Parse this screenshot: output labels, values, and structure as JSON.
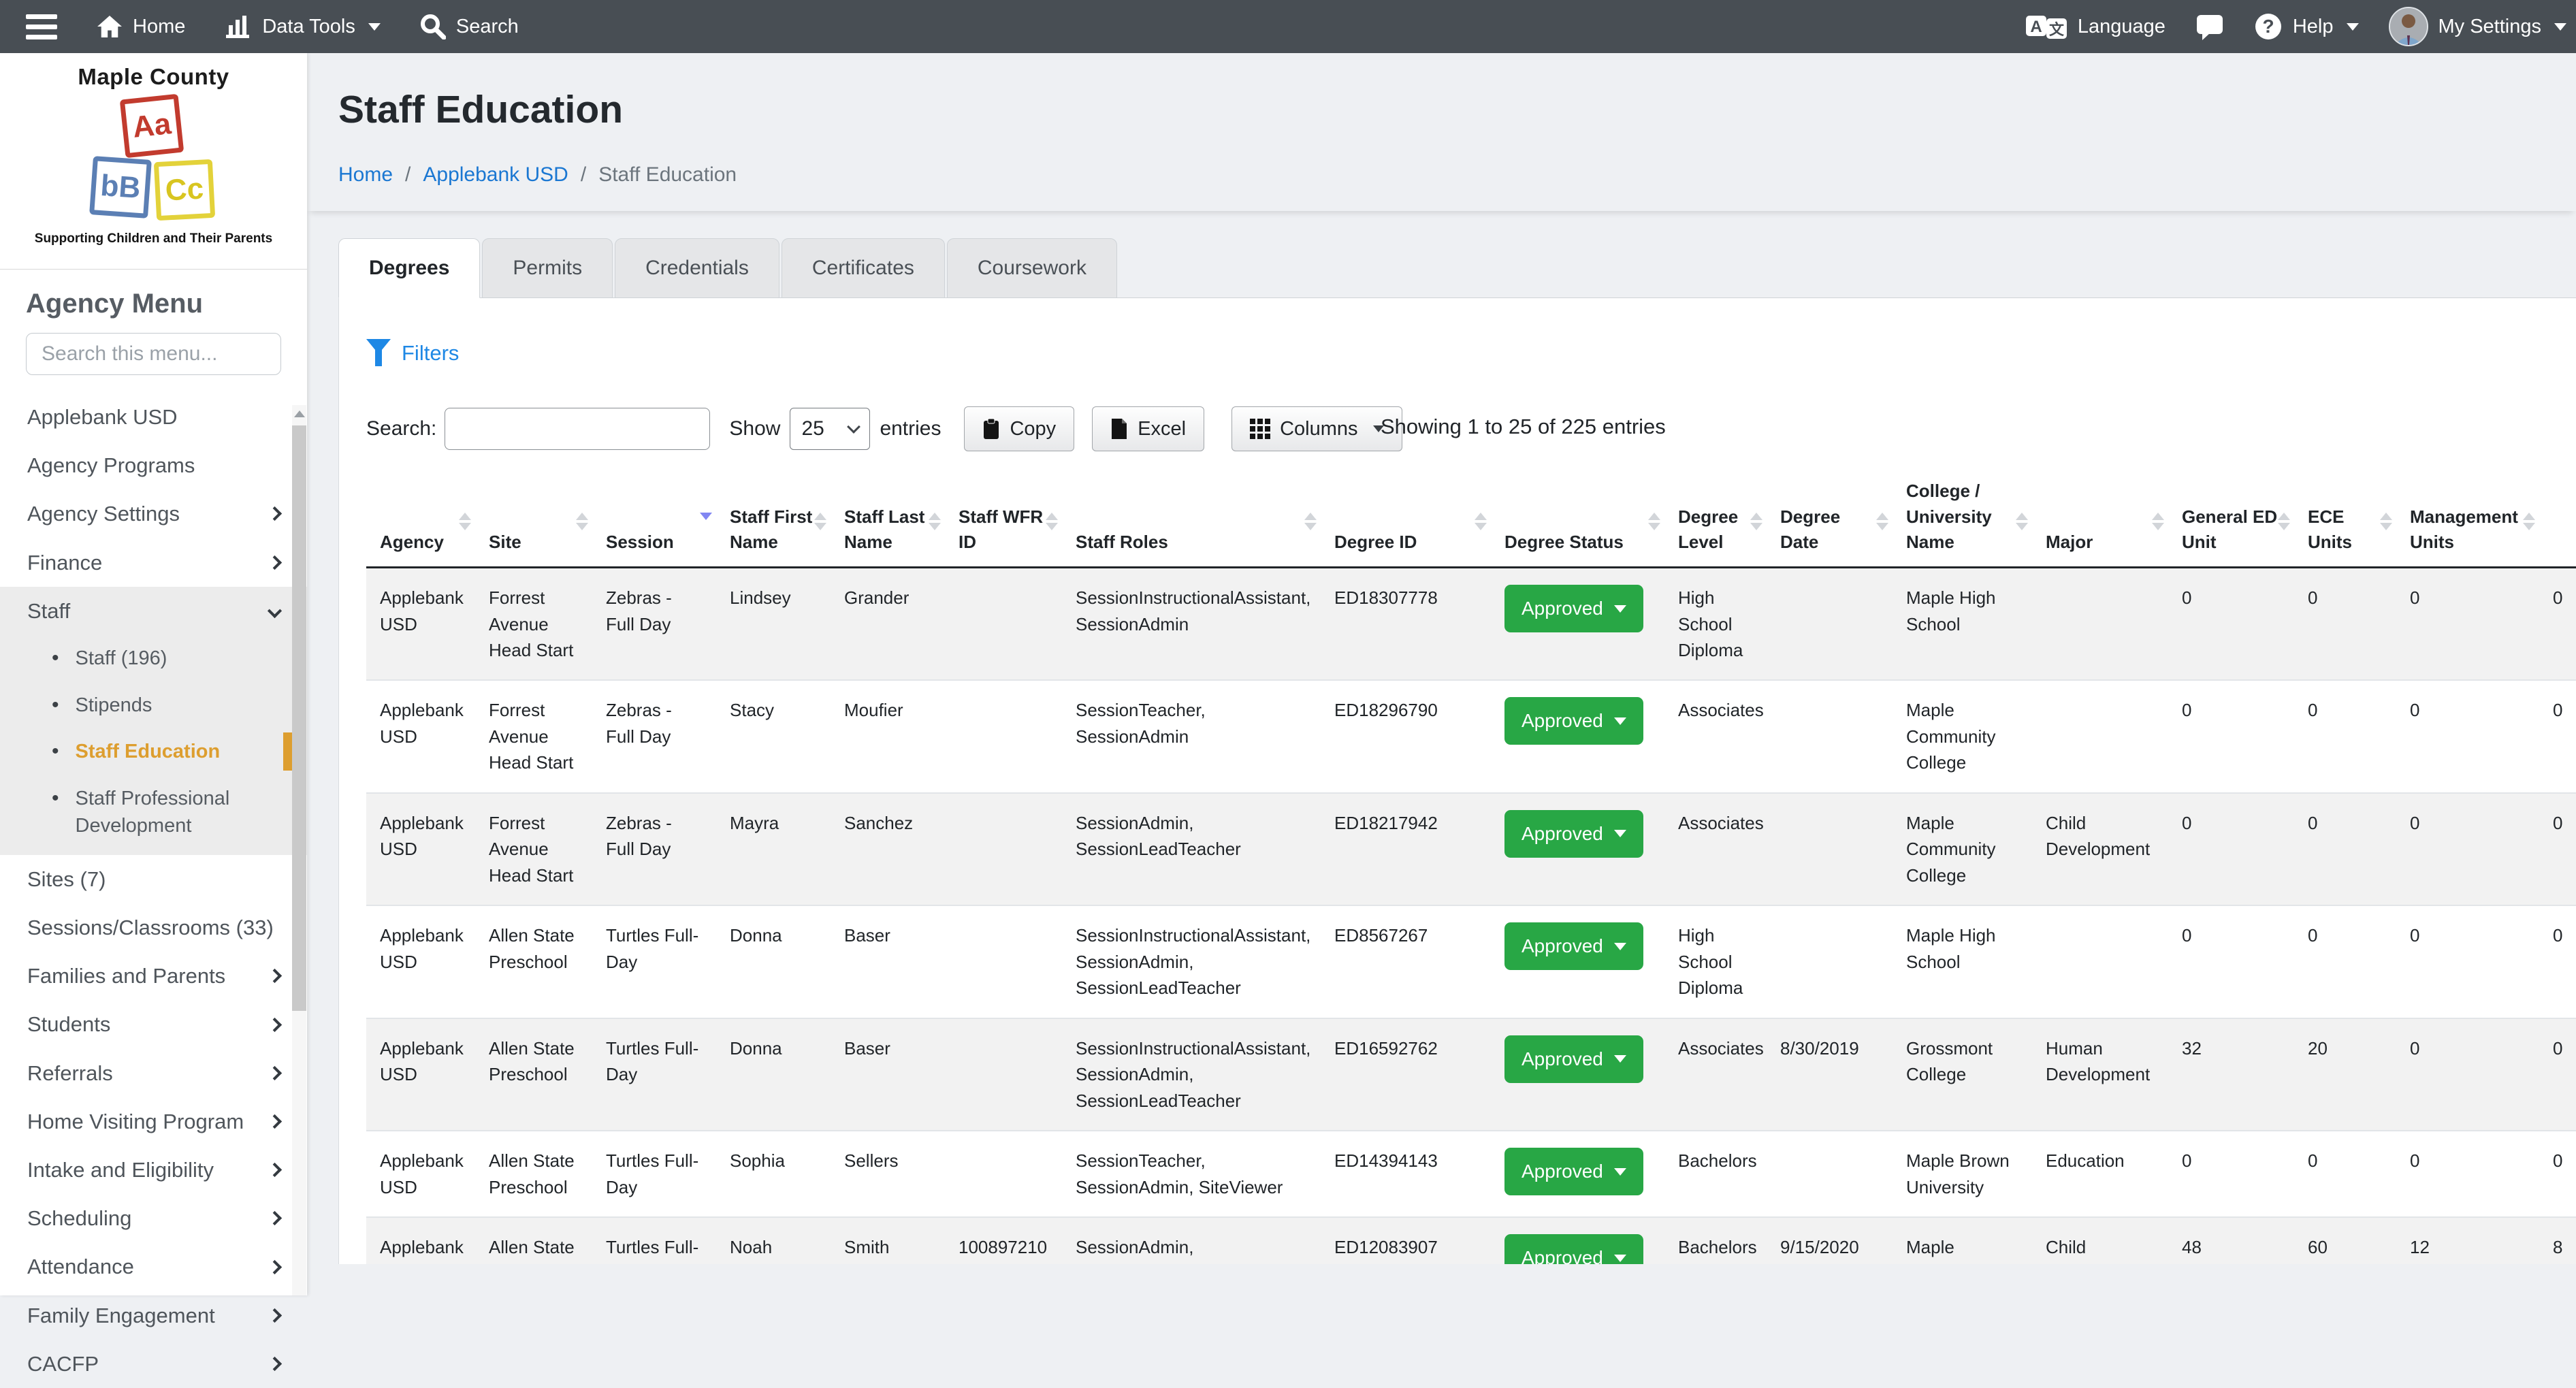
{
  "colors": {
    "navbar_bg": "#484e54",
    "link_blue": "#1a77d2",
    "active_orange": "#dd9e2f",
    "success_green": "#28a745",
    "sort_active_blue": "#8186f2",
    "stripe_gray": "#f2f2f2"
  },
  "navbar": {
    "home_label": "Home",
    "data_tools_label": "Data Tools",
    "search_label": "Search",
    "language_label": "Language",
    "help_label": "Help",
    "my_settings_label": "My Settings"
  },
  "sidebar": {
    "logo": {
      "title": "Maple County",
      "tagline": "Supporting Children and Their Parents",
      "blocks": [
        "Aa",
        "bB",
        "Cc"
      ]
    },
    "heading": "Agency Menu",
    "search_placeholder": "Search this menu...",
    "items": [
      {
        "label": "Applebank USD"
      },
      {
        "label": "Agency Programs"
      },
      {
        "label": "Agency Settings",
        "chevron": "right"
      },
      {
        "label": "Finance",
        "chevron": "right"
      },
      {
        "label": "Staff",
        "chevron": "down",
        "children": [
          {
            "label": "Staff (196)"
          },
          {
            "label": "Stipends"
          },
          {
            "label": "Staff Education",
            "active": true
          },
          {
            "label": "Staff Professional Development"
          }
        ]
      },
      {
        "label": "Sites (7)"
      },
      {
        "label": "Sessions/Classrooms (33)"
      },
      {
        "label": "Families and Parents",
        "chevron": "right"
      },
      {
        "label": "Students",
        "chevron": "right"
      },
      {
        "label": "Referrals",
        "chevron": "right"
      },
      {
        "label": "Home Visiting Program",
        "chevron": "right"
      },
      {
        "label": "Intake and Eligibility",
        "chevron": "right"
      },
      {
        "label": "Scheduling",
        "chevron": "right"
      },
      {
        "label": "Attendance",
        "chevron": "right"
      },
      {
        "label": "Family Engagement",
        "chevron": "right"
      },
      {
        "label": "CACFP",
        "chevron": "right"
      }
    ]
  },
  "page": {
    "title": "Staff Education",
    "breadcrumb": [
      {
        "label": "Home",
        "link": true
      },
      {
        "label": "Applebank USD",
        "link": true
      },
      {
        "label": "Staff Education",
        "link": false
      }
    ]
  },
  "tabs": [
    {
      "label": "Degrees",
      "active": true
    },
    {
      "label": "Permits"
    },
    {
      "label": "Credentials"
    },
    {
      "label": "Certificates"
    },
    {
      "label": "Coursework"
    }
  ],
  "toolbar": {
    "filters_label": "Filters",
    "search_label": "Search:",
    "search_value": "",
    "show_label": "Show",
    "page_size": "25",
    "entries_label": "entries",
    "copy_label": "Copy",
    "excel_label": "Excel",
    "columns_label": "Columns",
    "showing_text": "Showing 1 to 25 of 225 entries"
  },
  "table": {
    "columns": [
      {
        "label": "Agency",
        "sort": "both"
      },
      {
        "label": "Site",
        "sort": "both"
      },
      {
        "label": "Session",
        "sort": "desc"
      },
      {
        "label": "Staff First Name",
        "sort": "both"
      },
      {
        "label": "Staff Last Name",
        "sort": "both"
      },
      {
        "label": "Staff WFR ID",
        "sort": "both"
      },
      {
        "label": "Staff Roles",
        "sort": "both"
      },
      {
        "label": "Degree ID",
        "sort": "both"
      },
      {
        "label": "Degree Status",
        "sort": "both"
      },
      {
        "label": "Degree Level",
        "sort": "both"
      },
      {
        "label": "Degree Date",
        "sort": "both"
      },
      {
        "label": "College / University Name",
        "sort": "both"
      },
      {
        "label": "Major",
        "sort": "both"
      },
      {
        "label": "General ED Unit",
        "sort": "both"
      },
      {
        "label": "ECE Units",
        "sort": "both"
      },
      {
        "label": "Management Units",
        "sort": "both"
      },
      {
        "label": "",
        "sort": "none"
      }
    ],
    "rows": [
      {
        "agency": "Applebank USD",
        "site": "Forrest Avenue Head Start",
        "session": "Zebras - Full Day",
        "staff_first_name": "Lindsey",
        "staff_last_name": "Grander",
        "staff_wfr_id": "",
        "staff_roles": "SessionInstructionalAssistant, SessionAdmin",
        "degree_id": "ED18307778",
        "degree_status": "Approved",
        "degree_level": "High School Diploma",
        "degree_date": "",
        "college_university_name": "Maple High School",
        "major": "",
        "general_ed_unit": "0",
        "ece_units": "0",
        "management_units": "0",
        "extra": "0"
      },
      {
        "agency": "Applebank USD",
        "site": "Forrest Avenue Head Start",
        "session": "Zebras - Full Day",
        "staff_first_name": "Stacy",
        "staff_last_name": "Moufier",
        "staff_wfr_id": "",
        "staff_roles": "SessionTeacher, SessionAdmin",
        "degree_id": "ED18296790",
        "degree_status": "Approved",
        "degree_level": "Associates",
        "degree_date": "",
        "college_university_name": "Maple Community College",
        "major": "",
        "general_ed_unit": "0",
        "ece_units": "0",
        "management_units": "0",
        "extra": "0"
      },
      {
        "agency": "Applebank USD",
        "site": "Forrest Avenue Head Start",
        "session": "Zebras - Full Day",
        "staff_first_name": "Mayra",
        "staff_last_name": "Sanchez",
        "staff_wfr_id": "",
        "staff_roles": "SessionAdmin, SessionLeadTeacher",
        "degree_id": "ED18217942",
        "degree_status": "Approved",
        "degree_level": "Associates",
        "degree_date": "",
        "college_university_name": "Maple Community College",
        "major": "Child Development",
        "general_ed_unit": "0",
        "ece_units": "0",
        "management_units": "0",
        "extra": "0"
      },
      {
        "agency": "Applebank USD",
        "site": "Allen State Preschool",
        "session": "Turtles Full-Day",
        "staff_first_name": "Donna",
        "staff_last_name": "Baser",
        "staff_wfr_id": "",
        "staff_roles": "SessionInstructionalAssistant, SessionAdmin, SessionLeadTeacher",
        "degree_id": "ED8567267",
        "degree_status": "Approved",
        "degree_level": "High School Diploma",
        "degree_date": "",
        "college_university_name": "Maple High School",
        "major": "",
        "general_ed_unit": "0",
        "ece_units": "0",
        "management_units": "0",
        "extra": "0"
      },
      {
        "agency": "Applebank USD",
        "site": "Allen State Preschool",
        "session": "Turtles Full-Day",
        "staff_first_name": "Donna",
        "staff_last_name": "Baser",
        "staff_wfr_id": "",
        "staff_roles": "SessionInstructionalAssistant, SessionAdmin, SessionLeadTeacher",
        "degree_id": "ED16592762",
        "degree_status": "Approved",
        "degree_level": "Associates",
        "degree_date": "8/30/2019",
        "college_university_name": "Grossmont College",
        "major": "Human Development",
        "general_ed_unit": "32",
        "ece_units": "20",
        "management_units": "0",
        "extra": "0"
      },
      {
        "agency": "Applebank USD",
        "site": "Allen State Preschool",
        "session": "Turtles Full-Day",
        "staff_first_name": "Sophia",
        "staff_last_name": "Sellers",
        "staff_wfr_id": "",
        "staff_roles": "SessionTeacher, SessionAdmin, SiteViewer",
        "degree_id": "ED14394143",
        "degree_status": "Approved",
        "degree_level": "Bachelors",
        "degree_date": "",
        "college_university_name": "Maple Brown University",
        "major": "Education",
        "general_ed_unit": "0",
        "ece_units": "0",
        "management_units": "0",
        "extra": "0"
      },
      {
        "agency": "Applebank USD",
        "site": "Allen State Preschool",
        "session": "Turtles Full-Day",
        "staff_first_name": "Noah",
        "staff_last_name": "Smith",
        "staff_wfr_id": "100897210",
        "staff_roles": "SessionAdmin, SessionLeadTeacher",
        "degree_id": "ED12083907",
        "degree_status": "Approved",
        "degree_level": "Bachelors",
        "degree_date": "9/15/2020",
        "college_university_name": "Maple University",
        "major": "Child Development",
        "general_ed_unit": "48",
        "ece_units": "60",
        "management_units": "12",
        "extra": "8"
      }
    ]
  }
}
